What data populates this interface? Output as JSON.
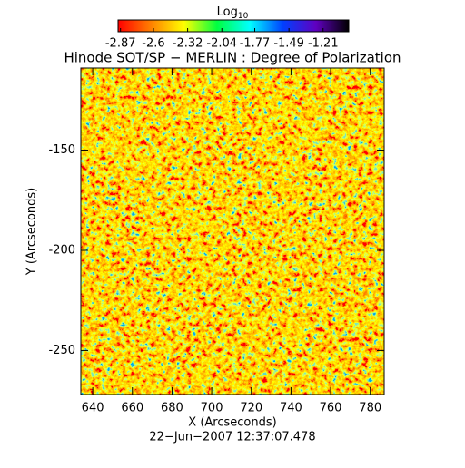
{
  "chart_data": {
    "type": "image",
    "title": "Hinode SOT/SP − MERLIN : Degree of Polarization",
    "xlabel": "X (Arcseconds)",
    "ylabel": "Y (Arcseconds)",
    "footer": "22−Jun−2007 12:37:07.478",
    "colorbar_title": {
      "base": "Log",
      "subscript": "10"
    },
    "clim": [
      -2.89,
      -1.0
    ],
    "cticks": [
      -2.87,
      -2.6,
      -2.32,
      -2.04,
      -1.77,
      -1.49,
      -1.21
    ],
    "colormap": [
      "#ff0000",
      "#ff8000",
      "#ffff00",
      "#00ff40",
      "#00ffff",
      "#0040ff",
      "#6000c0",
      "#000000"
    ],
    "xlim": [
      634,
      787
    ],
    "xticks": [
      640,
      660,
      680,
      700,
      720,
      740,
      760,
      780
    ],
    "ylim": [
      -272,
      -109
    ],
    "yticks": [
      -150,
      -200,
      -250
    ]
  }
}
